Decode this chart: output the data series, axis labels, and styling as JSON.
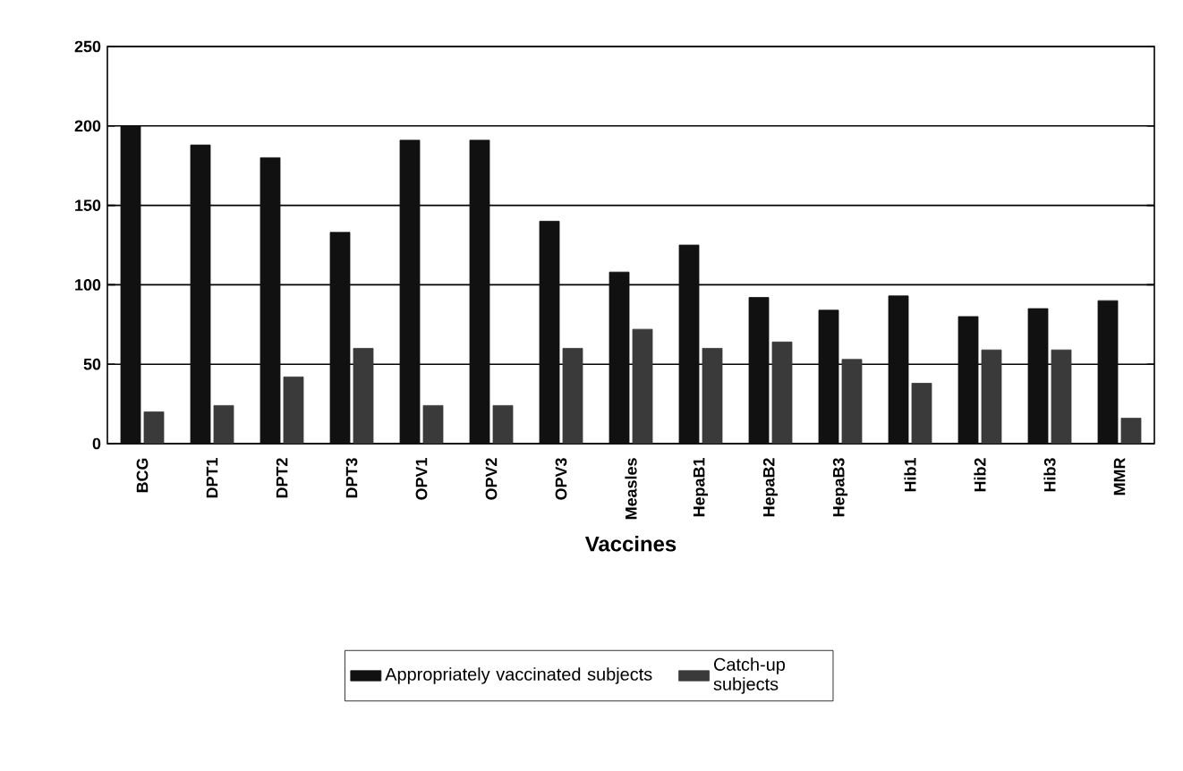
{
  "chart_data": {
    "type": "bar",
    "xlabel": "Vaccines",
    "categories": [
      "BCG",
      "DPT1",
      "DPT2",
      "DPT3",
      "OPV1",
      "OPV2",
      "OPV3",
      "Measles",
      "HepaB1",
      "HepaB2",
      "HepaB3",
      "Hib1",
      "Hib2",
      "Hib3",
      "MMR"
    ],
    "series": [
      {
        "name": "Appropriately vaccinated subjects",
        "color": "#111111",
        "values": [
          200,
          188,
          180,
          133,
          191,
          191,
          140,
          108,
          125,
          92,
          84,
          93,
          80,
          85,
          90
        ]
      },
      {
        "name": "Catch-up subjects",
        "color": "#3a3a3a",
        "values": [
          20,
          24,
          42,
          60,
          24,
          24,
          60,
          72,
          60,
          64,
          53,
          38,
          59,
          59,
          16
        ]
      }
    ],
    "ylim": [
      0,
      250
    ],
    "yticks": [
      0,
      50,
      100,
      150,
      200,
      250
    ],
    "grid": "y",
    "legend": "bottom"
  }
}
